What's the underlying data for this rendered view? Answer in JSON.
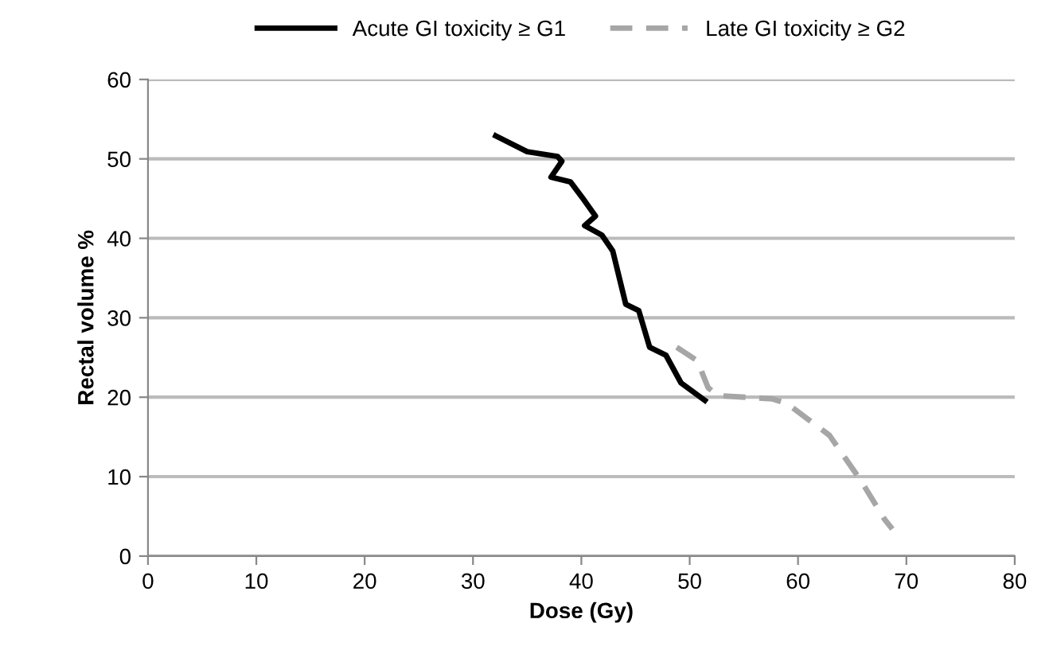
{
  "chart_data": {
    "type": "line",
    "xlabel": "Dose (Gy)",
    "ylabel": "Rectal volume %",
    "xlim": [
      0,
      80
    ],
    "xticks": [
      0,
      10,
      20,
      30,
      40,
      50,
      60,
      70,
      80
    ],
    "ylim": [
      0,
      60
    ],
    "yticks": [
      0,
      10,
      20,
      30,
      40,
      50,
      60
    ],
    "grid": "y",
    "legend": "top",
    "marker": "none",
    "series": [
      {
        "name": "Acute GI toxicity ≥ G1",
        "color": "#000000",
        "line_style": "solid",
        "x": [
          32.1,
          35.0,
          37.8,
          38.2,
          37.2,
          39.0,
          40.1,
          41.3,
          40.3,
          41.9,
          42.9,
          44.1,
          45.3,
          46.3,
          47.8,
          49.2,
          51.4
        ],
        "values": [
          52.9,
          50.9,
          50.3,
          49.7,
          47.7,
          47.1,
          45.1,
          42.8,
          41.6,
          40.4,
          38.4,
          31.7,
          30.9,
          26.3,
          25.3,
          21.8,
          19.6
        ]
      },
      {
        "name": "Late GI toxicity ≥ G2",
        "color": "#a6a6a6",
        "line_style": "dashed",
        "x": [
          48.8,
          50.7,
          51.7,
          52.6,
          57.6,
          59.0,
          62.9,
          65.8,
          68.0,
          68.7
        ],
        "values": [
          26.3,
          24.6,
          21.2,
          20.2,
          19.8,
          19.2,
          15.2,
          9.5,
          4.6,
          3.4
        ]
      }
    ]
  }
}
